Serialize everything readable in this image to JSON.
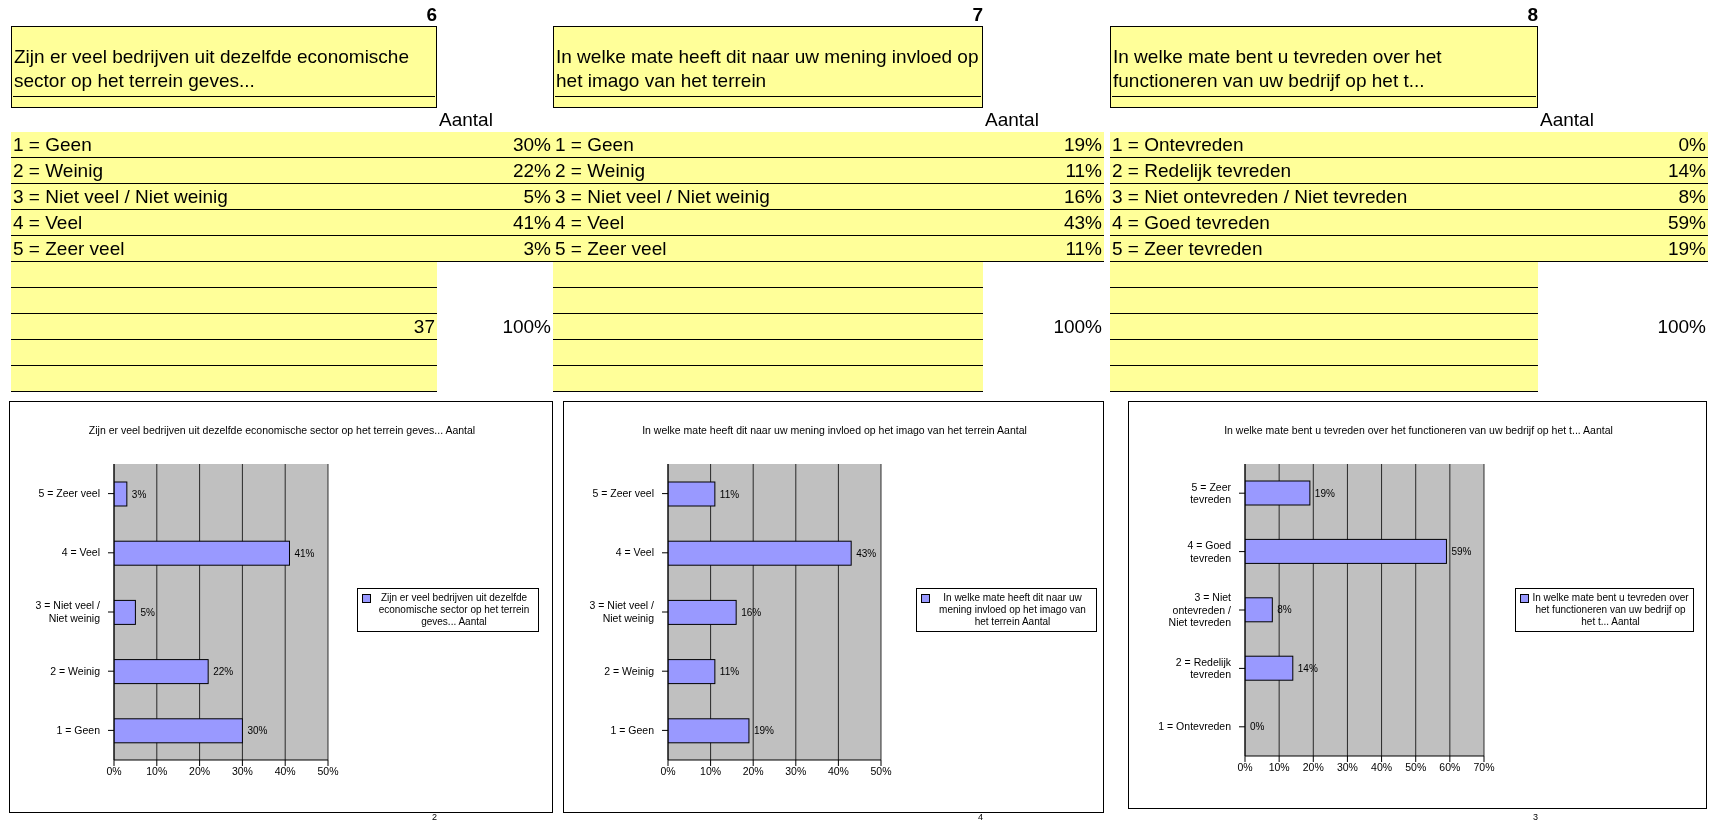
{
  "chart_data": [
    {
      "type": "other",
      "title": "Zijn er veel bedrijven uit dezelfde economische sector op het terrein geves...",
      "categories": [
        "1 = Geen",
        "2 = Weinig",
        "3 = Niet veel / Niet weinig",
        "4 = Veel",
        "5 = Zeer veel"
      ],
      "value_labels": [
        "30%",
        "22%",
        "5%",
        "41%",
        "3%"
      ],
      "annotations": [
        "6",
        "Aantal",
        "37",
        "100%",
        "2"
      ]
    },
    {
      "type": "other",
      "title": "In welke mate heeft dit naar uw mening invloed op het imago van het terrein",
      "categories": [
        "1 = Geen",
        "2 = Weinig",
        "3 = Niet veel / Niet weinig",
        "4 = Veel",
        "5 = Zeer veel"
      ],
      "value_labels": [
        "19%",
        "11%",
        "16%",
        "43%",
        "11%"
      ],
      "annotations": [
        "7",
        "Aantal",
        "100%",
        "4"
      ]
    },
    {
      "type": "other",
      "title": "In welke mate bent u tevreden over het functioneren van uw bedrijf op het t...",
      "categories": [
        "1 = Ontevreden",
        "2 = Redelijk tevreden",
        "3 = Niet ontevreden / Niet tevreden",
        "4 = Goed tevreden",
        "5 = Zeer tevreden"
      ],
      "value_labels": [
        "0%",
        "14%",
        "8%",
        "59%",
        "19%"
      ],
      "annotations": [
        "8",
        "Aantal",
        "100%",
        "3"
      ]
    },
    {
      "type": "bar",
      "orientation": "horizontal",
      "title": "Zijn er veel bedrijven uit dezelfde economische sector op het terrein geves... Aantal",
      "categories": [
        "5 = Zeer veel",
        "4 = Veel",
        "3 = Niet veel / Niet weinig",
        "2 = Weinig",
        "1 = Geen"
      ],
      "series": [
        {
          "name": "Zijn er veel bedrijven uit dezelfde economische sector op het terrein geves... Aantal",
          "color": "#9999ff",
          "values": [
            3,
            41,
            5,
            22,
            30
          ],
          "value_labels": [
            "3%",
            "41%",
            "5%",
            "22%",
            "30%"
          ]
        }
      ],
      "xlim": [
        0,
        50
      ],
      "xticks": [
        {
          "value": 0,
          "label": "0%"
        },
        {
          "value": 10,
          "label": "10%"
        },
        {
          "value": 20,
          "label": "20%"
        },
        {
          "value": 30,
          "label": "30%"
        },
        {
          "value": 40,
          "label": "40%"
        },
        {
          "value": 50,
          "label": "50%"
        }
      ],
      "grid": "x",
      "legend": "right"
    },
    {
      "type": "bar",
      "orientation": "horizontal",
      "title": "In welke mate heeft dit naar uw mening invloed op het imago van het terrein Aantal",
      "categories": [
        "5 = Zeer veel",
        "4 = Veel",
        "3 = Niet veel / Niet weinig",
        "2 = Weinig",
        "1 = Geen"
      ],
      "series": [
        {
          "name": "In welke mate heeft dit naar uw mening invloed op het imago van het terrein Aantal",
          "color": "#9999ff",
          "values": [
            11,
            43,
            16,
            11,
            19
          ],
          "value_labels": [
            "11%",
            "43%",
            "16%",
            "11%",
            "19%"
          ]
        }
      ],
      "xlim": [
        0,
        50
      ],
      "xticks": [
        {
          "value": 0,
          "label": "0%"
        },
        {
          "value": 10,
          "label": "10%"
        },
        {
          "value": 20,
          "label": "20%"
        },
        {
          "value": 30,
          "label": "30%"
        },
        {
          "value": 40,
          "label": "40%"
        },
        {
          "value": 50,
          "label": "50%"
        }
      ],
      "grid": "x",
      "legend": "right"
    },
    {
      "type": "bar",
      "orientation": "horizontal",
      "title": "In welke mate bent u tevreden over het functioneren van uw bedrijf op het t... Aantal",
      "categories": [
        "5 = Zeer tevreden",
        "4 = Goed tevreden",
        "3 = Niet ontevreden / Niet tevreden",
        "2 = Redelijk tevreden",
        "1 = Ontevreden"
      ],
      "series": [
        {
          "name": "In welke mate bent u tevreden over het functioneren van uw bedrijf op het t... Aantal",
          "color": "#9999ff",
          "values": [
            19,
            59,
            8,
            14,
            0
          ],
          "value_labels": [
            "19%",
            "59%",
            "8%",
            "14%",
            "0%"
          ]
        }
      ],
      "xlim": [
        0,
        70
      ],
      "xticks": [
        {
          "value": 0,
          "label": "0%"
        },
        {
          "value": 10,
          "label": "10%"
        },
        {
          "value": 20,
          "label": "20%"
        },
        {
          "value": 30,
          "label": "30%"
        },
        {
          "value": 40,
          "label": "40%"
        },
        {
          "value": 50,
          "label": "50%"
        },
        {
          "value": 60,
          "label": "60%"
        },
        {
          "value": 70,
          "label": "70%"
        }
      ],
      "grid": "x",
      "legend": "right"
    }
  ]
}
